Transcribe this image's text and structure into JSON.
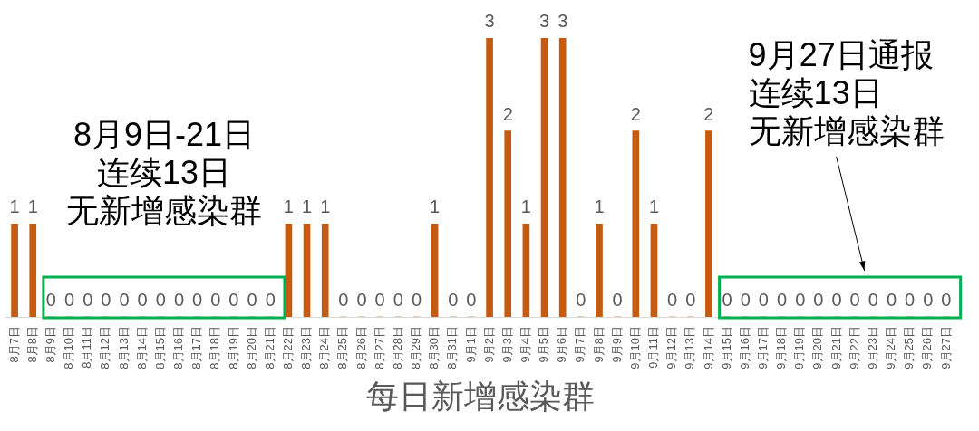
{
  "chart_data": {
    "type": "bar",
    "xlabel": "每日新增感染群",
    "categories": [
      "8月7日",
      "8月8日",
      "8月9日",
      "8月10日",
      "8月11日",
      "8月12日",
      "8月13日",
      "8月14日",
      "8月15日",
      "8月16日",
      "8月17日",
      "8月18日",
      "8月19日",
      "8月20日",
      "8月21日",
      "8月22日",
      "8月23日",
      "8月24日",
      "8月25日",
      "8月26日",
      "8月27日",
      "8月28日",
      "8月29日",
      "8月30日",
      "8月31日",
      "9月1日",
      "9月2日",
      "9月3日",
      "9月4日",
      "9月5日",
      "9月6日",
      "9月7日",
      "9月8日",
      "9月9日",
      "9月10日",
      "9月11日",
      "9月12日",
      "9月13日",
      "9月14日",
      "9月15日",
      "9月16日",
      "9月17日",
      "9月18日",
      "9月19日",
      "9月20日",
      "9月21日",
      "9月22日",
      "9月23日",
      "9月24日",
      "9月25日",
      "9月26日",
      "9月27日"
    ],
    "values": [
      1,
      1,
      0,
      0,
      0,
      0,
      0,
      0,
      0,
      0,
      0,
      0,
      0,
      0,
      0,
      1,
      1,
      1,
      0,
      0,
      0,
      0,
      0,
      1,
      0,
      0,
      3,
      2,
      1,
      3,
      3,
      0,
      1,
      0,
      2,
      1,
      0,
      0,
      2,
      0,
      0,
      0,
      0,
      0,
      0,
      0,
      0,
      0,
      0,
      0,
      0,
      0
    ],
    "color": "#c55a11",
    "data_labels": true,
    "tick_labels": "x",
    "annotations": [
      "8月9日-21日",
      "连续13日",
      "无新增感染群",
      "9月27日通报",
      "连续13日",
      "无新增感染群"
    ]
  }
}
